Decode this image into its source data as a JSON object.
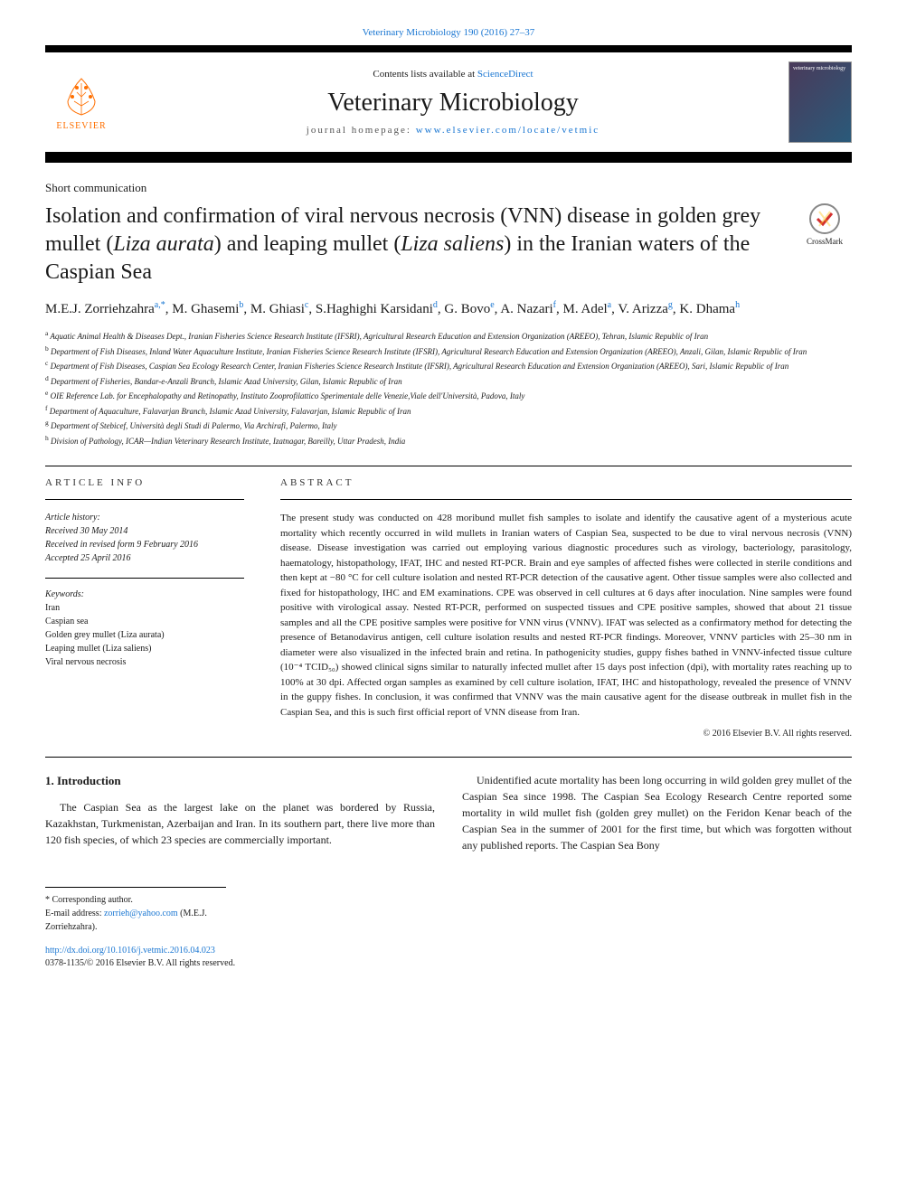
{
  "top_citation": "Veterinary Microbiology 190 (2016) 27–37",
  "header": {
    "contents_prefix": "Contents lists available at ",
    "contents_link": "ScienceDirect",
    "journal_name": "Veterinary Microbiology",
    "homepage_prefix": "journal homepage: ",
    "homepage_link": "www.elsevier.com/locate/vetmic",
    "elsevier_label": "ELSEVIER",
    "cover_text": "veterinary microbiology"
  },
  "article_type": "Short communication",
  "title_parts": {
    "p1": "Isolation and confirmation of viral nervous necrosis (VNN) disease in golden grey mullet (",
    "p2": "Liza aurata",
    "p3": ") and leaping mullet (",
    "p4": "Liza saliens",
    "p5": ") in the Iranian waters of the Caspian Sea"
  },
  "crossmark_label": "CrossMark",
  "authors": [
    {
      "name": "M.E.J. Zorriehzahra",
      "aff": "a,",
      "corr": "*"
    },
    {
      "name": "M. Ghasemi",
      "aff": "b"
    },
    {
      "name": "M. Ghiasi",
      "aff": "c"
    },
    {
      "name": "S.Haghighi Karsidani",
      "aff": "d"
    },
    {
      "name": "G. Bovo",
      "aff": "e"
    },
    {
      "name": "A. Nazari",
      "aff": "f"
    },
    {
      "name": "M. Adel",
      "aff": "a"
    },
    {
      "name": "V. Arizza",
      "aff": "g"
    },
    {
      "name": "K. Dhama",
      "aff": "h"
    }
  ],
  "affiliations": [
    {
      "key": "a",
      "text": "Aquatic Animal Health & Diseases Dept., Iranian Fisheries Science Research Institute (IFSRI), Agricultural Research Education and Extension Organization (AREEO), Tehran, Islamic Republic of Iran"
    },
    {
      "key": "b",
      "text": "Department of Fish Diseases, Inland Water Aquaculture Institute, Iranian Fisheries Science Research Institute (IFSRI), Agricultural Research Education and Extension Organization (AREEO), Anzali, Gilan, Islamic Republic of Iran"
    },
    {
      "key": "c",
      "text": "Department of Fish Diseases, Caspian Sea Ecology Research Center, Iranian Fisheries Science Research Institute (IFSRI), Agricultural Research Education and Extension Organization (AREEO), Sari, Islamic Republic of Iran"
    },
    {
      "key": "d",
      "text": "Department of Fisheries, Bandar-e-Anzali Branch, Islamic Azad University, Gilan, Islamic Republic of Iran"
    },
    {
      "key": "e",
      "text": "OIE Reference Lab. for Encephalopathy and Retinopathy, Instituto Zooprofilattico Sperimentale delle Venezie,Viale dell'Università, Padova, Italy"
    },
    {
      "key": "f",
      "text": "Department of Aquaculture, Falavarjan Branch, Islamic Azad University, Falavarjan, Islamic Republic of Iran"
    },
    {
      "key": "g",
      "text": "Department of Stebicef, Università degli Studi di Palermo, Via Archirafi, Palermo, Italy"
    },
    {
      "key": "h",
      "text": "Division of Pathology, ICAR—Indian Veterinary Research Institute, Izatnagar, Bareilly, Uttar Pradesh, India"
    }
  ],
  "article_info_header": "ARTICLE INFO",
  "abstract_header": "ABSTRACT",
  "history": {
    "label": "Article history:",
    "received": "Received 30 May 2014",
    "revised": "Received in revised form 9 February 2016",
    "accepted": "Accepted 25 April 2016"
  },
  "keywords": {
    "label": "Keywords:",
    "items": [
      "Iran",
      "Caspian sea",
      "Golden grey mullet (Liza aurata)",
      "Leaping mullet (Liza saliens)",
      "Viral nervous necrosis"
    ]
  },
  "abstract": "The present study was conducted on 428 moribund mullet fish samples to isolate and identify the causative agent of a mysterious acute mortality which recently occurred in wild mullets in Iranian waters of Caspian Sea, suspected to be due to viral nervous necrosis (VNN) disease. Disease investigation was carried out employing various diagnostic procedures such as virology, bacteriology, parasitology, haematology, histopathology, IFAT, IHC and nested RT-PCR. Brain and eye samples of affected fishes were collected in sterile conditions and then kept at −80 °C for cell culture isolation and nested RT-PCR detection of the causative agent. Other tissue samples were also collected and fixed for histopathology, IHC and EM examinations. CPE was observed in cell cultures at 6 days after inoculation. Nine samples were found positive with virological assay. Nested RT-PCR, performed on suspected tissues and CPE positive samples, showed that about 21 tissue samples and all the CPE positive samples were positive for VNN virus (VNNV). IFAT was selected as a confirmatory method for detecting the presence of Betanodavirus antigen, cell culture isolation results and nested RT-PCR findings. Moreover, VNNV particles with 25–30 nm in diameter were also visualized in the infected brain and retina. In pathogenicity studies, guppy fishes bathed in VNNV-infected tissue culture (10⁻⁴ TCID₅₀) showed clinical signs similar to naturally infected mullet after 15 days post infection (dpi), with mortality rates reaching up to 100% at 30 dpi. Affected organ samples as examined by cell culture isolation, IFAT, IHC and histopathology, revealed the presence of VNNV in the guppy fishes. In conclusion, it was confirmed that VNNV was the main causative agent for the disease outbreak in mullet fish in the Caspian Sea, and this is such first official report of VNN disease from Iran.",
  "copyright": "© 2016 Elsevier B.V. All rights reserved.",
  "intro": {
    "heading": "1. Introduction",
    "p1": "The Caspian Sea as the largest lake on the planet was bordered by Russia, Kazakhstan, Turkmenistan, Azerbaijan and Iran. In its southern part, there live more than 120 fish species, of which 23 species are commercially important.",
    "p2": "Unidentified acute mortality has been long occurring in wild golden grey mullet of the Caspian Sea since 1998. The Caspian Sea Ecology Research Centre reported some mortality in wild mullet fish (golden grey mullet) on the Feridon Kenar beach of the Caspian Sea in the summer of 2001 for the first time, but which was forgotten without any published reports. The Caspian Sea Bony"
  },
  "footer": {
    "corresp_label": "* Corresponding author.",
    "email_label": "E-mail address: ",
    "email": "zorrieh@yahoo.com",
    "email_name": " (M.E.J. Zorriehzahra).",
    "doi": "http://dx.doi.org/10.1016/j.vetmic.2016.04.023",
    "issn": "0378-1135/© 2016 Elsevier B.V. All rights reserved."
  },
  "colors": {
    "link": "#1976d2",
    "elsevier_orange": "#ff6f00",
    "text": "#1a1a1a"
  }
}
